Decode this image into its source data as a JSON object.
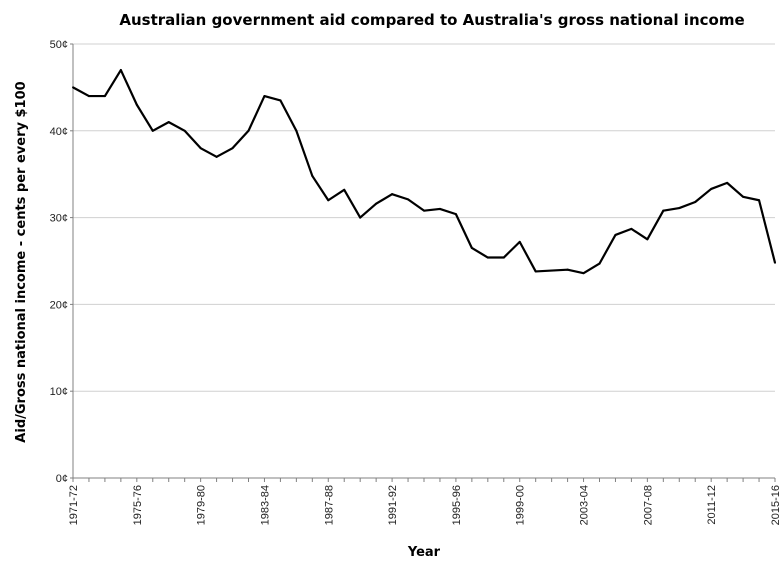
{
  "chart_data": {
    "type": "line",
    "title": "Australian government aid compared to Australia's gross national income",
    "xlabel": "Year",
    "ylabel": "Aid/Gross national income - cents per every $100",
    "y_tick_labels": [
      "0¢",
      "10¢",
      "20¢",
      "30¢",
      "40¢",
      "50¢"
    ],
    "ylim": [
      0,
      50
    ],
    "grid": "horizontal",
    "legend": "none",
    "line_color": "#000000",
    "x_tick_labels": [
      "1971-72",
      "1975-76",
      "1979-80",
      "1983-84",
      "1987-88",
      "1991-92",
      "1995-96",
      "1999-00",
      "2003-04",
      "2007-08",
      "2011-12",
      "2015-16"
    ],
    "x": [
      "1971-72",
      "1972-73",
      "1973-74",
      "1974-75",
      "1975-76",
      "1976-77",
      "1977-78",
      "1978-79",
      "1979-80",
      "1980-81",
      "1981-82",
      "1982-83",
      "1983-84",
      "1984-85",
      "1985-86",
      "1986-87",
      "1987-88",
      "1988-89",
      "1989-90",
      "1990-91",
      "1991-92",
      "1992-93",
      "1993-94",
      "1994-95",
      "1995-96",
      "1996-97",
      "1997-98",
      "1998-99",
      "1999-00",
      "2000-01",
      "2001-02",
      "2002-03",
      "2003-04",
      "2004-05",
      "2005-06",
      "2006-07",
      "2007-08",
      "2008-09",
      "2009-10",
      "2010-11",
      "2011-12",
      "2012-13",
      "2013-14",
      "2014-15",
      "2015-16"
    ],
    "series": [
      {
        "values": [
          45,
          44,
          44,
          47,
          43,
          40,
          41,
          40,
          38,
          37,
          38,
          40,
          44,
          43.5,
          40,
          34.8,
          32,
          33.2,
          30,
          31.6,
          32.7,
          32.1,
          30.8,
          31,
          30.4,
          26.5,
          25.4,
          25.4,
          27.2,
          23.8,
          23.9,
          24,
          23.6,
          24.7,
          28,
          28.7,
          27.5,
          30.8,
          31.1,
          31.8,
          33.3,
          34,
          32.4,
          32,
          24.8
        ]
      }
    ]
  }
}
